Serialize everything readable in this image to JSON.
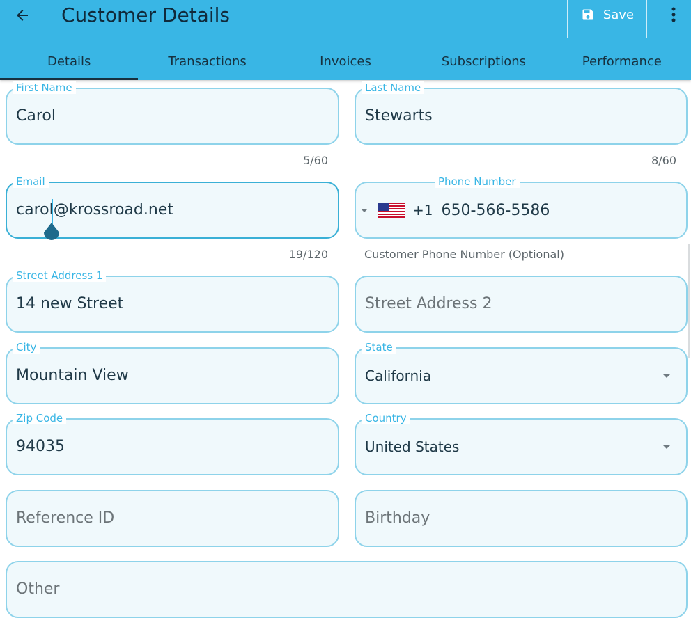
{
  "header": {
    "title": "Customer Details",
    "save_label": "Save",
    "icons": {
      "back": "arrow-left-icon",
      "save": "floppy-disk-icon",
      "more": "more-vertical-icon"
    },
    "bg_color": "#39b6e5"
  },
  "tabs": [
    {
      "label": "Details",
      "active": true
    },
    {
      "label": "Transactions",
      "active": false
    },
    {
      "label": "Invoices",
      "active": false
    },
    {
      "label": "Subscriptions",
      "active": false
    },
    {
      "label": "Performance",
      "active": false
    }
  ],
  "form": {
    "first_name": {
      "label": "First Name",
      "value": "Carol",
      "counter": "5/60"
    },
    "last_name": {
      "label": "Last Name",
      "value": "Stewarts",
      "counter": "8/60"
    },
    "email": {
      "label": "Email",
      "value": "carol@krossroad.net",
      "counter": "19/120"
    },
    "phone": {
      "label": "Phone Number",
      "country_code": "+1",
      "value": "650-566-5586",
      "helper": "Customer Phone Number (Optional)",
      "flag": "us-flag-icon"
    },
    "street1": {
      "label": "Street Address 1",
      "value": "14 new Street"
    },
    "street2": {
      "placeholder": "Street Address 2"
    },
    "city": {
      "label": "City",
      "value": "Mountain View"
    },
    "state": {
      "label": "State",
      "value": "California"
    },
    "zip": {
      "label": "Zip Code",
      "value": "94035"
    },
    "country": {
      "label": "Country",
      "value": "United States"
    },
    "reference_id": {
      "placeholder": "Reference ID"
    },
    "birthday": {
      "placeholder": "Birthday"
    },
    "other": {
      "placeholder": "Other"
    }
  }
}
